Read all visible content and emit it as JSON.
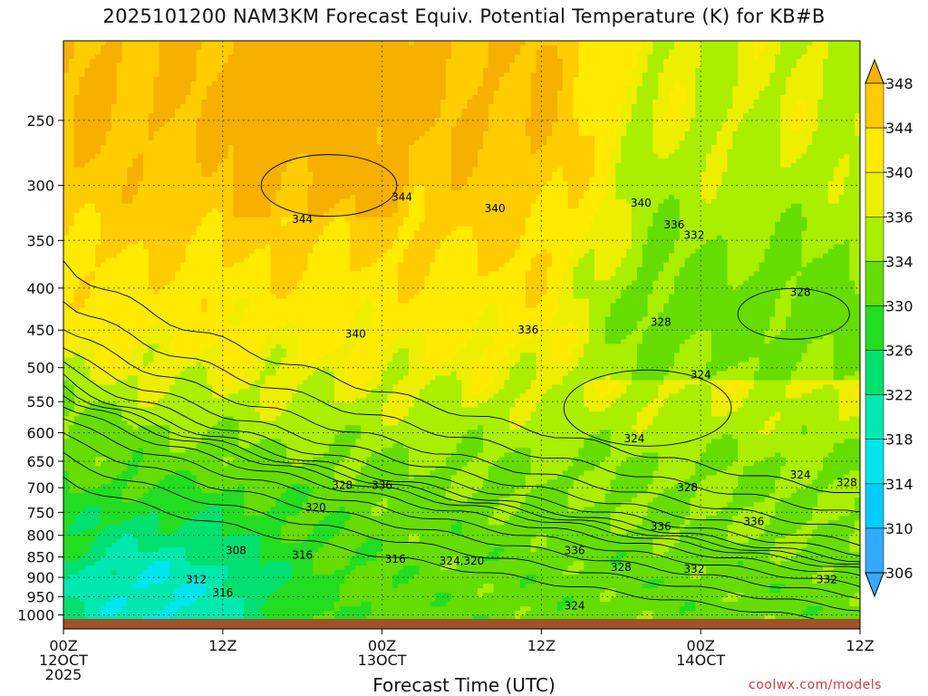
{
  "title": "2025101200 NAM3KM Forecast Equiv. Potential Temperature (K) for KB#B",
  "credit": "coolwx.com/models",
  "colors": {
    "ground": "#a0522d",
    "bands": [
      "#33aaff",
      "#00ccff",
      "#00e5ee",
      "#00e8b0",
      "#00e070",
      "#22dd22",
      "#66dd00",
      "#aaee00",
      "#eeee00",
      "#ffea00",
      "#ffcc00",
      "#f5b000"
    ]
  },
  "chart_data": {
    "type": "heatmap",
    "title": "2025101200 NAM3KM Forecast Equiv. Potential Temperature (K) for KB#B",
    "xlabel": "Forecast Time (UTC)",
    "ylabel": "",
    "x_range_hours": [
      0,
      60
    ],
    "y_axis": {
      "unit": "hPa",
      "log_pressure": true,
      "top": 200,
      "bottom": 1040,
      "ticks": [
        250,
        300,
        350,
        400,
        450,
        500,
        550,
        600,
        650,
        700,
        750,
        800,
        850,
        900,
        950,
        1000
      ]
    },
    "x_ticks": [
      {
        "hour": 0,
        "lines": [
          "00Z",
          "12OCT",
          "2025"
        ]
      },
      {
        "hour": 12,
        "lines": [
          "12Z"
        ]
      },
      {
        "hour": 24,
        "lines": [
          "00Z",
          "13OCT"
        ]
      },
      {
        "hour": 36,
        "lines": [
          "12Z"
        ]
      },
      {
        "hour": 48,
        "lines": [
          "00Z",
          "14OCT"
        ]
      },
      {
        "hour": 60,
        "lines": [
          "12Z"
        ]
      }
    ],
    "colorbar": {
      "levels": [
        306,
        310,
        314,
        318,
        322,
        326,
        330,
        334,
        336,
        340,
        344,
        348
      ],
      "extend": "both"
    },
    "contour_labels": [
      {
        "text": "344",
        "hour": 18,
        "p": 330
      },
      {
        "text": "344",
        "hour": 25.5,
        "p": 310
      },
      {
        "text": "340",
        "hour": 32.5,
        "p": 320
      },
      {
        "text": "340",
        "hour": 43.5,
        "p": 315
      },
      {
        "text": "336",
        "hour": 46,
        "p": 335
      },
      {
        "text": "332",
        "hour": 47.5,
        "p": 345
      },
      {
        "text": "328",
        "hour": 55.5,
        "p": 405
      },
      {
        "text": "328",
        "hour": 45,
        "p": 440
      },
      {
        "text": "336",
        "hour": 35,
        "p": 450
      },
      {
        "text": "340",
        "hour": 22,
        "p": 455
      },
      {
        "text": "324",
        "hour": 48,
        "p": 510
      },
      {
        "text": "324",
        "hour": 43,
        "p": 610
      },
      {
        "text": "324",
        "hour": 55.5,
        "p": 675
      },
      {
        "text": "328",
        "hour": 59,
        "p": 690
      },
      {
        "text": "328",
        "hour": 47,
        "p": 700
      },
      {
        "text": "328",
        "hour": 21,
        "p": 695
      },
      {
        "text": "336",
        "hour": 24,
        "p": 695
      },
      {
        "text": "320",
        "hour": 19,
        "p": 740
      },
      {
        "text": "336",
        "hour": 45,
        "p": 780
      },
      {
        "text": "336",
        "hour": 52,
        "p": 770
      },
      {
        "text": "336",
        "hour": 38.5,
        "p": 835
      },
      {
        "text": "308",
        "hour": 13,
        "p": 835
      },
      {
        "text": "316",
        "hour": 18,
        "p": 845
      },
      {
        "text": "316",
        "hour": 25,
        "p": 855
      },
      {
        "text": "324,320",
        "hour": 30,
        "p": 860
      },
      {
        "text": "328",
        "hour": 42,
        "p": 875
      },
      {
        "text": "332",
        "hour": 47.5,
        "p": 880
      },
      {
        "text": "332",
        "hour": 57.5,
        "p": 905
      },
      {
        "text": "312",
        "hour": 10,
        "p": 905
      },
      {
        "text": "316",
        "hour": 12,
        "p": 940
      },
      {
        "text": "324",
        "hour": 38.5,
        "p": 975
      }
    ]
  }
}
